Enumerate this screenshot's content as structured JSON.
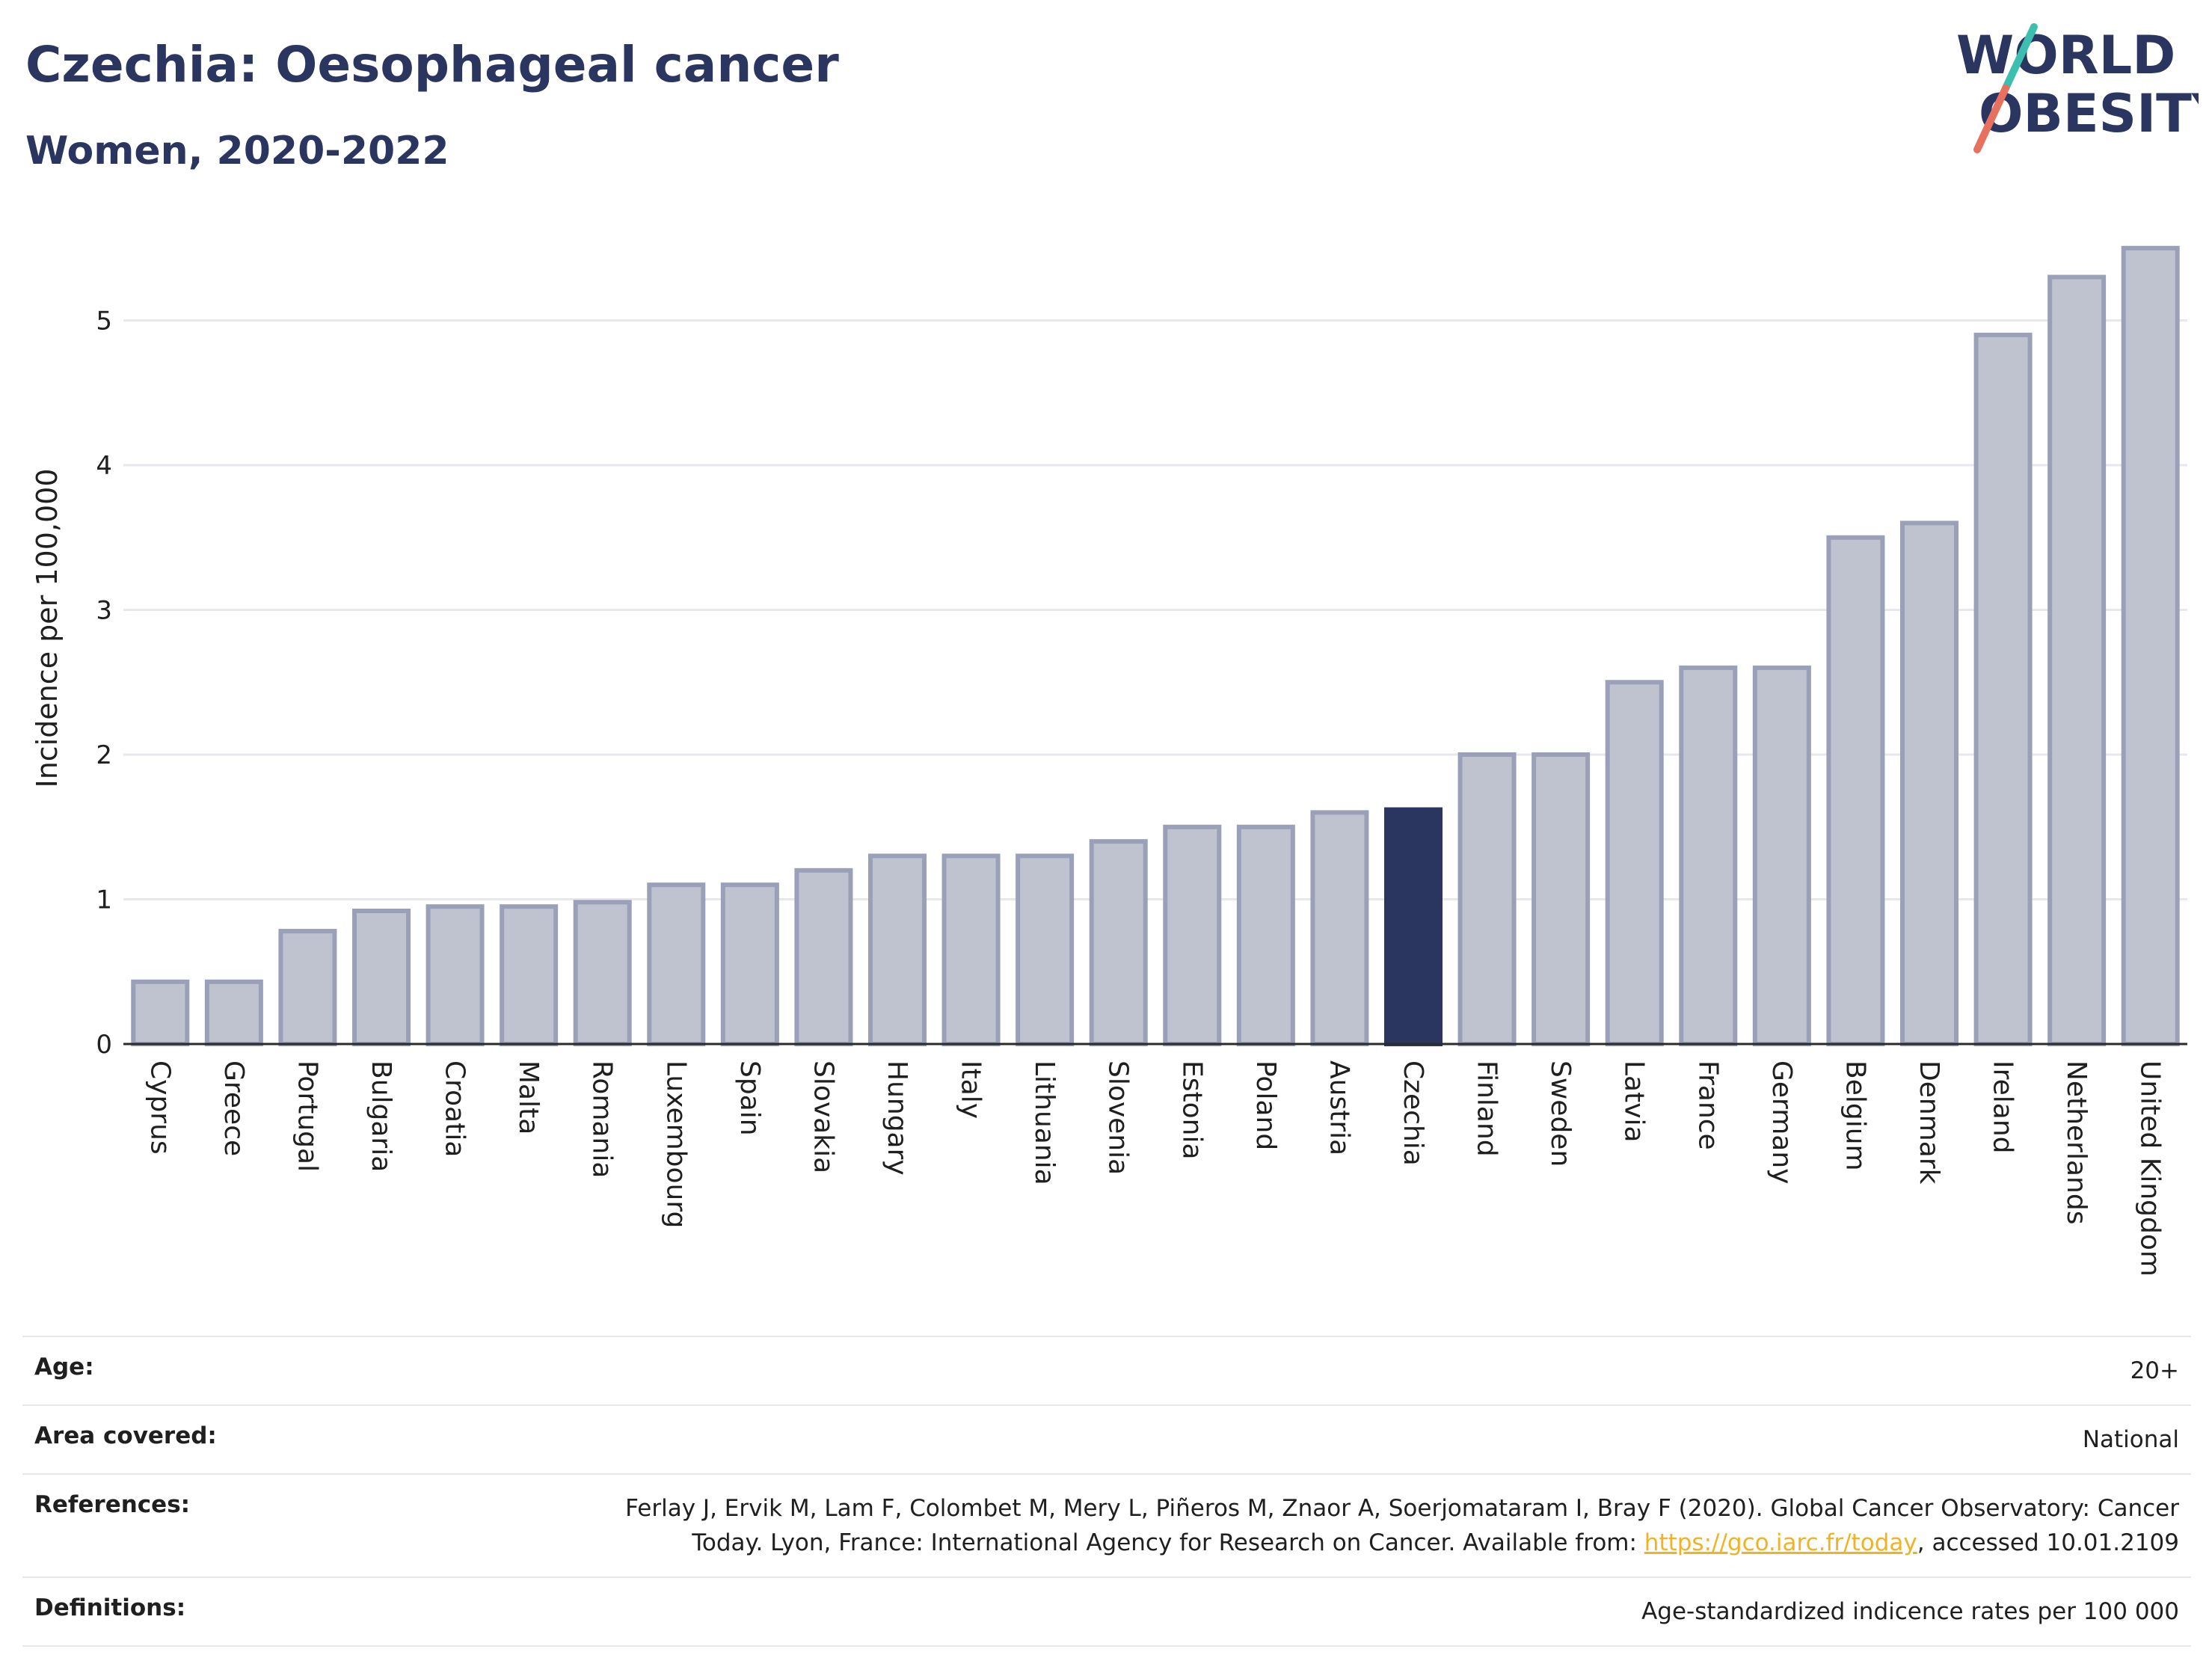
{
  "header": {
    "title": "Czechia: Oesophageal cancer",
    "subtitle": "Women, 2020-2022",
    "logo_line1": "WORLD",
    "logo_line2": "OBESITY"
  },
  "colors": {
    "bar_default": "#bfc3d0",
    "bar_default_stroke": "#9aa0b8",
    "bar_highlight": "#2a3560",
    "title": "#2a3560",
    "grid": "#e6e8ee",
    "link": "#f0b323",
    "logo_teal": "#3dbfb0",
    "logo_coral": "#e8705f"
  },
  "chart_data": {
    "type": "bar",
    "ylabel": "Incidence per 100,000",
    "xlabel": "",
    "ylim": [
      0,
      5.75
    ],
    "yticks": [
      0,
      1,
      2,
      3,
      4,
      5
    ],
    "grid": true,
    "highlight": "Czechia",
    "categories": [
      "Cyprus",
      "Greece",
      "Portugal",
      "Bulgaria",
      "Croatia",
      "Malta",
      "Romania",
      "Luxembourg",
      "Spain",
      "Slovakia",
      "Hungary",
      "Italy",
      "Lithuania",
      "Slovenia",
      "Estonia",
      "Poland",
      "Austria",
      "Czechia",
      "Finland",
      "Sweden",
      "Latvia",
      "France",
      "Germany",
      "Belgium",
      "Denmark",
      "Ireland",
      "Netherlands",
      "United Kingdom"
    ],
    "values": [
      0.43,
      0.43,
      0.78,
      0.92,
      0.95,
      0.95,
      0.98,
      1.1,
      1.1,
      1.2,
      1.3,
      1.3,
      1.3,
      1.4,
      1.5,
      1.5,
      1.6,
      1.62,
      2.0,
      2.0,
      2.5,
      2.6,
      2.6,
      3.5,
      3.6,
      4.9,
      5.3,
      5.5
    ]
  },
  "meta": {
    "age_label": "Age:",
    "age_value": "20+",
    "area_label": "Area covered:",
    "area_value": "National",
    "references_label": "References:",
    "references_text_1": "Ferlay J, Ervik M, Lam F, Colombet M, Mery L, Piñeros M, Znaor A, Soerjomataram I, Bray F (2020). Global Cancer Observatory: Cancer Today. Lyon, France: International Agency for Research on Cancer. Available from: ",
    "references_link": "https://gco.iarc.fr/today",
    "references_text_2": ", accessed 10.01.2109",
    "definitions_label": "Definitions:",
    "definitions_value": "Age-standardized indicence rates per 100 000"
  }
}
